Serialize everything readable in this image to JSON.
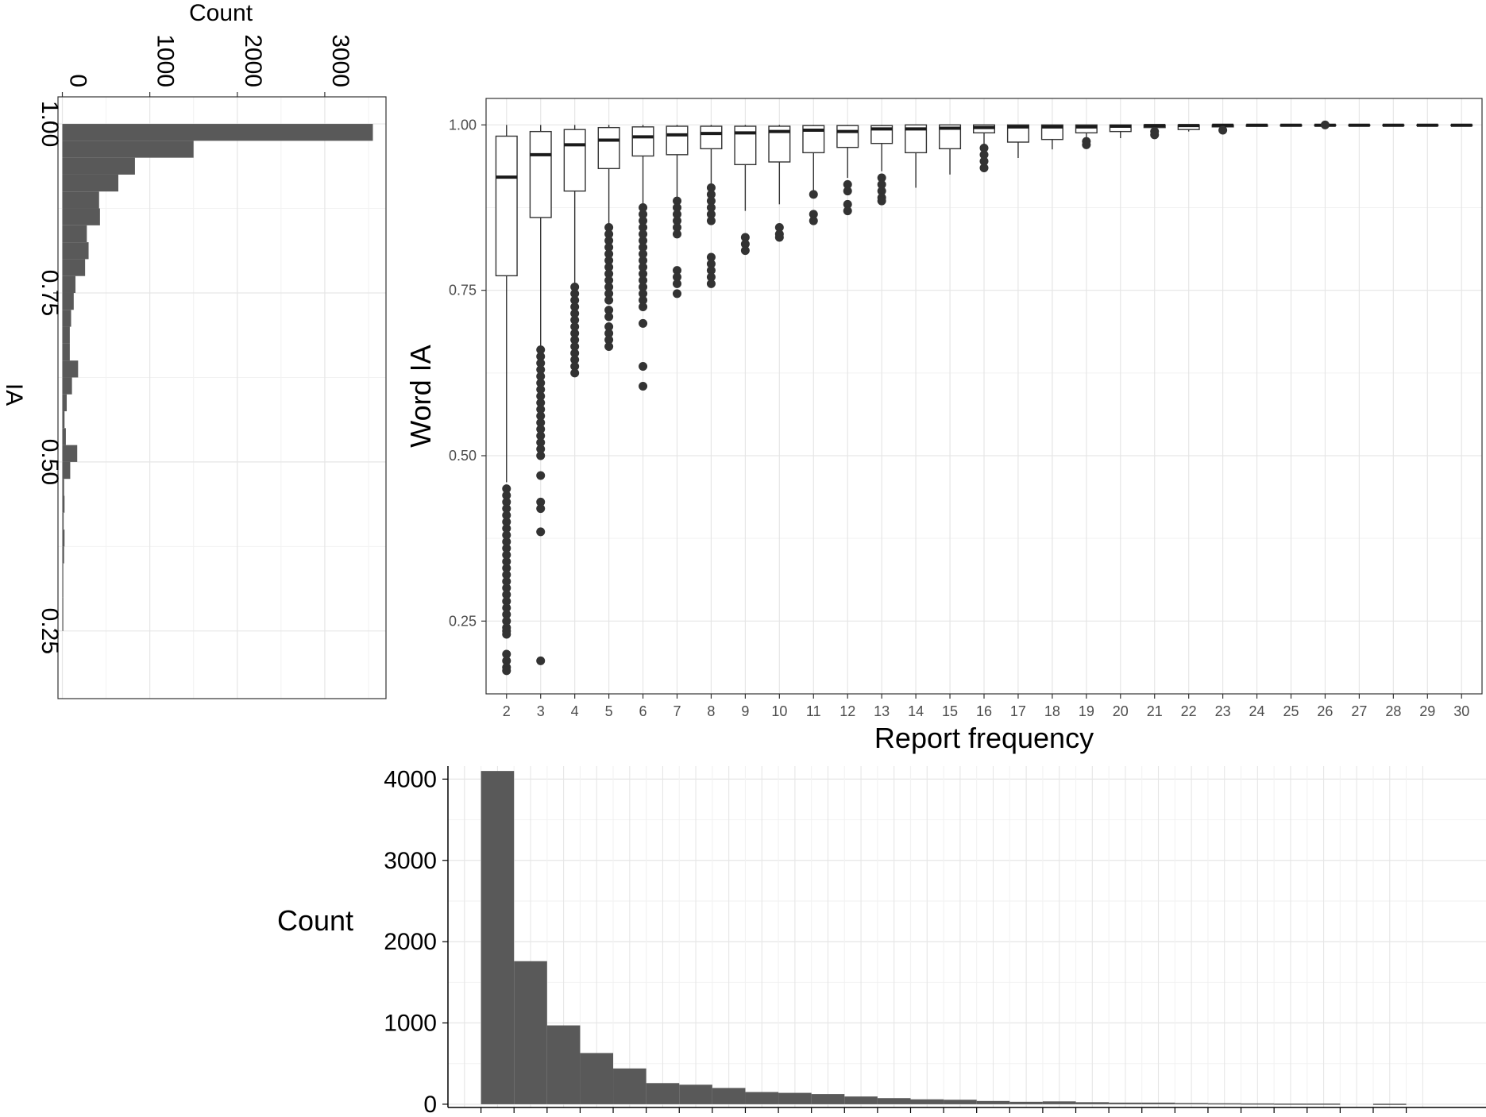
{
  "chart_data": [
    {
      "id": "ia-histogram",
      "type": "bar",
      "orientation": "horizontal",
      "xlabel": "Count",
      "ylabel": "IA",
      "x_ticks": [
        0,
        1000,
        2000,
        3000
      ],
      "y_ticks": [
        "0.25",
        "0.50",
        "0.75",
        "1.00"
      ],
      "xlim": [
        -50,
        3700
      ],
      "ylim": [
        0.15,
        1.04
      ],
      "grid": true,
      "bin_width": 0.025,
      "bins": [
        {
          "center": 0.9875,
          "count": 3550
        },
        {
          "center": 0.9625,
          "count": 1500
        },
        {
          "center": 0.9375,
          "count": 830
        },
        {
          "center": 0.9125,
          "count": 640
        },
        {
          "center": 0.8875,
          "count": 420
        },
        {
          "center": 0.8625,
          "count": 430
        },
        {
          "center": 0.8375,
          "count": 280
        },
        {
          "center": 0.8125,
          "count": 300
        },
        {
          "center": 0.7875,
          "count": 260
        },
        {
          "center": 0.7625,
          "count": 150
        },
        {
          "center": 0.7375,
          "count": 130
        },
        {
          "center": 0.7125,
          "count": 100
        },
        {
          "center": 0.6875,
          "count": 85
        },
        {
          "center": 0.6625,
          "count": 85
        },
        {
          "center": 0.6375,
          "count": 180
        },
        {
          "center": 0.6125,
          "count": 110
        },
        {
          "center": 0.5875,
          "count": 50
        },
        {
          "center": 0.5625,
          "count": 25
        },
        {
          "center": 0.5375,
          "count": 40
        },
        {
          "center": 0.5125,
          "count": 170
        },
        {
          "center": 0.4875,
          "count": 90
        },
        {
          "center": 0.4625,
          "count": 20
        },
        {
          "center": 0.4375,
          "count": 25
        },
        {
          "center": 0.4125,
          "count": 15
        },
        {
          "center": 0.3875,
          "count": 25
        },
        {
          "center": 0.3625,
          "count": 20
        },
        {
          "center": 0.3375,
          "count": 10
        },
        {
          "center": 0.3125,
          "count": 10
        },
        {
          "center": 0.2875,
          "count": 8
        },
        {
          "center": 0.2625,
          "count": 5
        }
      ]
    },
    {
      "id": "word-ia-boxplot",
      "type": "box",
      "xlabel": "Report frequency",
      "ylabel": "Word IA",
      "categories": [
        "2",
        "3",
        "4",
        "5",
        "6",
        "7",
        "8",
        "9",
        "10",
        "11",
        "12",
        "13",
        "14",
        "15",
        "16",
        "17",
        "18",
        "19",
        "20",
        "21",
        "22",
        "23",
        "24",
        "25",
        "26",
        "27",
        "28",
        "29",
        "30"
      ],
      "y_ticks": [
        "0.25",
        "0.50",
        "0.75",
        "1.00"
      ],
      "ylim": [
        0.14,
        1.04
      ],
      "grid": true,
      "boxes": [
        {
          "q1": 0.772,
          "median": 0.921,
          "q3": 0.983,
          "wlow": 0.46,
          "whigh": 1.0,
          "outliers": [
            0.45,
            0.44,
            0.43,
            0.42,
            0.41,
            0.4,
            0.39,
            0.38,
            0.37,
            0.36,
            0.35,
            0.34,
            0.33,
            0.32,
            0.31,
            0.3,
            0.29,
            0.28,
            0.27,
            0.26,
            0.25,
            0.24,
            0.235,
            0.23,
            0.2,
            0.19,
            0.18,
            0.175
          ]
        },
        {
          "q1": 0.86,
          "median": 0.955,
          "q3": 0.99,
          "wlow": 0.665,
          "whigh": 1.0,
          "outliers": [
            0.66,
            0.65,
            0.64,
            0.63,
            0.62,
            0.61,
            0.6,
            0.59,
            0.58,
            0.57,
            0.56,
            0.55,
            0.54,
            0.53,
            0.52,
            0.51,
            0.5,
            0.47,
            0.43,
            0.42,
            0.385,
            0.19
          ]
        },
        {
          "q1": 0.9,
          "median": 0.97,
          "q3": 0.993,
          "wlow": 0.76,
          "whigh": 1.0,
          "outliers": [
            0.755,
            0.745,
            0.735,
            0.725,
            0.715,
            0.705,
            0.695,
            0.685,
            0.675,
            0.665,
            0.655,
            0.645,
            0.635,
            0.625
          ]
        },
        {
          "q1": 0.934,
          "median": 0.977,
          "q3": 0.996,
          "wlow": 0.85,
          "whigh": 1.0,
          "outliers": [
            0.845,
            0.835,
            0.825,
            0.815,
            0.805,
            0.795,
            0.785,
            0.775,
            0.765,
            0.755,
            0.745,
            0.735,
            0.72,
            0.71,
            0.695,
            0.685,
            0.675,
            0.665
          ]
        },
        {
          "q1": 0.953,
          "median": 0.982,
          "q3": 0.997,
          "wlow": 0.88,
          "whigh": 1.0,
          "outliers": [
            0.875,
            0.865,
            0.855,
            0.845,
            0.835,
            0.825,
            0.815,
            0.805,
            0.795,
            0.785,
            0.775,
            0.765,
            0.755,
            0.745,
            0.735,
            0.725,
            0.7,
            0.635,
            0.605
          ]
        },
        {
          "q1": 0.955,
          "median": 0.985,
          "q3": 0.998,
          "wlow": 0.89,
          "whigh": 1.0,
          "outliers": [
            0.885,
            0.875,
            0.865,
            0.855,
            0.845,
            0.835,
            0.78,
            0.77,
            0.76,
            0.745
          ]
        },
        {
          "q1": 0.964,
          "median": 0.987,
          "q3": 0.998,
          "wlow": 0.91,
          "whigh": 1.0,
          "outliers": [
            0.905,
            0.895,
            0.885,
            0.875,
            0.865,
            0.855,
            0.8,
            0.79,
            0.78,
            0.77,
            0.76
          ]
        },
        {
          "q1": 0.94,
          "median": 0.988,
          "q3": 0.998,
          "wlow": 0.87,
          "whigh": 1.0,
          "outliers": [
            0.83,
            0.82,
            0.81
          ]
        },
        {
          "q1": 0.944,
          "median": 0.99,
          "q3": 0.998,
          "wlow": 0.88,
          "whigh": 1.0,
          "outliers": [
            0.845,
            0.835,
            0.83
          ]
        },
        {
          "q1": 0.958,
          "median": 0.992,
          "q3": 0.999,
          "wlow": 0.9,
          "whigh": 1.0,
          "outliers": [
            0.895,
            0.865,
            0.855
          ]
        },
        {
          "q1": 0.966,
          "median": 0.99,
          "q3": 0.999,
          "wlow": 0.92,
          "whigh": 1.0,
          "outliers": [
            0.91,
            0.9,
            0.88,
            0.87
          ]
        },
        {
          "q1": 0.972,
          "median": 0.994,
          "q3": 0.999,
          "wlow": 0.93,
          "whigh": 1.0,
          "outliers": [
            0.92,
            0.91,
            0.9,
            0.89,
            0.885
          ]
        },
        {
          "q1": 0.958,
          "median": 0.994,
          "q3": 1.0,
          "wlow": 0.905,
          "whigh": 1.0,
          "outliers": []
        },
        {
          "q1": 0.964,
          "median": 0.995,
          "q3": 1.0,
          "wlow": 0.925,
          "whigh": 1.0,
          "outliers": []
        },
        {
          "q1": 0.988,
          "median": 0.996,
          "q3": 1.0,
          "wlow": 0.97,
          "whigh": 1.0,
          "outliers": [
            0.965,
            0.955,
            0.945,
            0.935
          ]
        },
        {
          "q1": 0.974,
          "median": 0.997,
          "q3": 1.0,
          "wlow": 0.95,
          "whigh": 1.0,
          "outliers": []
        },
        {
          "q1": 0.978,
          "median": 0.997,
          "q3": 1.0,
          "wlow": 0.963,
          "whigh": 1.0,
          "outliers": []
        },
        {
          "q1": 0.988,
          "median": 0.997,
          "q3": 1.0,
          "wlow": 0.978,
          "whigh": 1.0,
          "outliers": [
            0.975,
            0.97
          ]
        },
        {
          "q1": 0.99,
          "median": 0.998,
          "q3": 1.0,
          "wlow": 0.98,
          "whigh": 1.0,
          "outliers": []
        },
        {
          "q1": 0.996,
          "median": 0.999,
          "q3": 1.0,
          "wlow": 0.992,
          "whigh": 1.0,
          "outliers": [
            0.99,
            0.985
          ]
        },
        {
          "q1": 0.993,
          "median": 0.999,
          "q3": 1.0,
          "wlow": 0.99,
          "whigh": 1.0,
          "outliers": []
        },
        {
          "q1": 0.997,
          "median": 0.9995,
          "q3": 1.0,
          "wlow": 0.997,
          "whigh": 1.0,
          "outliers": [
            0.992
          ]
        },
        {
          "q1": 0.998,
          "median": 0.9995,
          "q3": 1.0,
          "wlow": 0.998,
          "whigh": 1.0,
          "outliers": []
        },
        {
          "q1": 0.9985,
          "median": 0.9995,
          "q3": 1.0,
          "wlow": 0.9985,
          "whigh": 1.0,
          "outliers": []
        },
        {
          "q1": 0.999,
          "median": 0.9995,
          "q3": 1.0,
          "wlow": 0.999,
          "whigh": 1.0,
          "outliers": [
            1.0
          ]
        },
        {
          "q1": 0.999,
          "median": 0.9995,
          "q3": 1.0,
          "wlow": 0.999,
          "whigh": 1.0,
          "outliers": []
        },
        {
          "q1": 0.999,
          "median": 0.9995,
          "q3": 1.0,
          "wlow": 0.999,
          "whigh": 1.0,
          "outliers": []
        },
        {
          "q1": 0.999,
          "median": 0.9995,
          "q3": 1.0,
          "wlow": 0.999,
          "whigh": 1.0,
          "outliers": []
        },
        {
          "q1": 0.999,
          "median": 0.9995,
          "q3": 1.0,
          "wlow": 0.999,
          "whigh": 1.0,
          "outliers": []
        }
      ]
    },
    {
      "id": "frequency-histogram",
      "type": "bar",
      "orientation": "vertical",
      "ylabel": "Count",
      "y_ticks": [
        0,
        1000,
        2000,
        3000,
        4000
      ],
      "ylim": [
        -40,
        4160
      ],
      "grid": true,
      "xlim": [
        0.5,
        30.5
      ],
      "bins": [
        {
          "x": 2,
          "count": 4100
        },
        {
          "x": 3,
          "count": 1760
        },
        {
          "x": 4,
          "count": 970
        },
        {
          "x": 5,
          "count": 630
        },
        {
          "x": 6,
          "count": 440
        },
        {
          "x": 7,
          "count": 260
        },
        {
          "x": 8,
          "count": 240
        },
        {
          "x": 9,
          "count": 200
        },
        {
          "x": 10,
          "count": 150
        },
        {
          "x": 11,
          "count": 140
        },
        {
          "x": 12,
          "count": 125
        },
        {
          "x": 13,
          "count": 95
        },
        {
          "x": 14,
          "count": 75
        },
        {
          "x": 15,
          "count": 60
        },
        {
          "x": 16,
          "count": 55
        },
        {
          "x": 17,
          "count": 40
        },
        {
          "x": 18,
          "count": 30
        },
        {
          "x": 19,
          "count": 35
        },
        {
          "x": 20,
          "count": 25
        },
        {
          "x": 21,
          "count": 20
        },
        {
          "x": 22,
          "count": 20
        },
        {
          "x": 23,
          "count": 15
        },
        {
          "x": 24,
          "count": 12
        },
        {
          "x": 25,
          "count": 10
        },
        {
          "x": 26,
          "count": 8
        },
        {
          "x": 27,
          "count": 8
        },
        {
          "x": 28,
          "count": 0
        },
        {
          "x": 29,
          "count": 6
        }
      ]
    }
  ]
}
